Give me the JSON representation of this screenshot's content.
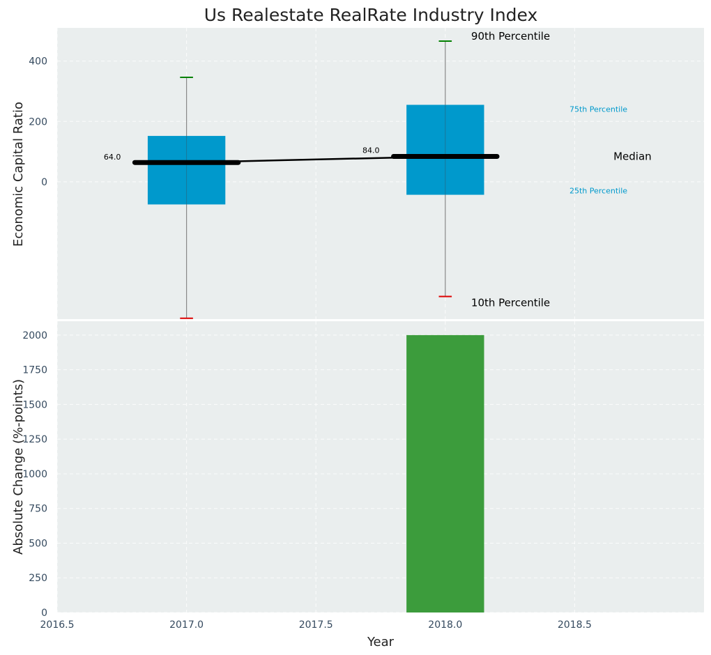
{
  "chart_data": {
    "type": "box",
    "title": "Us Realestate RealRate Industry Index",
    "grid": true,
    "colors": {
      "box": "#0099cc",
      "median": "#000000",
      "whisker": "#888888",
      "p90_cap": "#008000",
      "p10_cap": "#dd0000",
      "bar": "#3c9c3c",
      "panel_bg": "#eaeeee",
      "percentile_label": "#0099cc"
    },
    "top_panel": {
      "ylabel": "Economic Capital Ratio",
      "ylim": [
        -455,
        510
      ],
      "yticks": [
        0,
        200,
        400
      ],
      "series": [
        {
          "x": 2017.0,
          "p10": -452,
          "p25": -75,
          "median": 64,
          "p75": 152,
          "p90": 346,
          "median_label": "64.0"
        },
        {
          "x": 2018.0,
          "p10": -380,
          "p25": -43,
          "median": 84,
          "p75": 255,
          "p90": 466,
          "median_label": "84.0"
        }
      ],
      "annotations": {
        "p90": "90th Percentile",
        "p75": "75th Percentile",
        "median": "Median",
        "p25": "25th Percentile",
        "p10": "10th Percentile"
      }
    },
    "bottom_panel": {
      "ylabel": "Absolute Change (%-points)",
      "ylim": [
        0,
        2100
      ],
      "yticks": [
        0,
        250,
        500,
        750,
        1000,
        1250,
        1500,
        1750,
        2000
      ],
      "bars": [
        {
          "x": 2018.0,
          "value": 2000
        }
      ]
    },
    "x_axis": {
      "label": "Year",
      "xlim": [
        2016.5,
        2019.0
      ],
      "ticks": [
        2016.5,
        2017.0,
        2017.5,
        2018.0,
        2018.5
      ],
      "tick_labels": [
        "2016.5",
        "2017.0",
        "2017.5",
        "2018.0",
        "2018.5"
      ]
    }
  }
}
